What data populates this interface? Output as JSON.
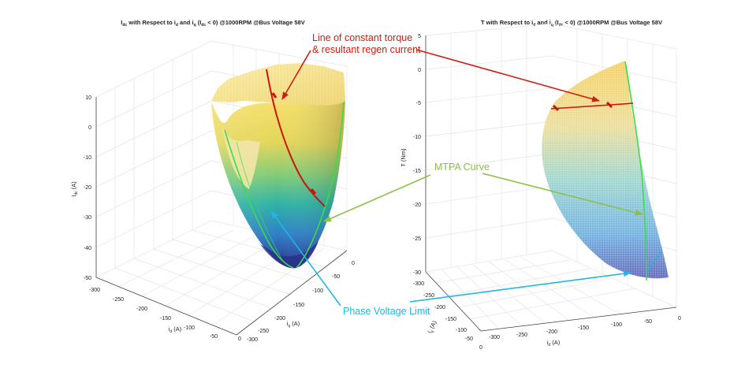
{
  "colors": {
    "annotation_red": "#cc1f12",
    "annotation_green": "#8dc04a",
    "annotation_cyan": "#22b6e2",
    "mtpa_line": "#3ddc4a",
    "torque_line": "#c8140c",
    "surface_top": "#f6e06a",
    "surface_mid": "#3cb5a0",
    "surface_bottom": "#2b2f8c"
  },
  "annotations": {
    "torque_line_line1": "Line of constant torque",
    "torque_line_line2": "& resultant regen current",
    "mtpa": "MTPA Curve",
    "phase_voltage": "Phase Voltage Limit"
  },
  "chart_data": [
    {
      "type": "surface3d",
      "title_parts": [
        "I",
        "dc",
        " with Respect to i",
        "d",
        " and i",
        "q",
        " (I",
        "dc",
        " < 0) @1000RPM @Bus Voltage 58V"
      ],
      "zlabel_main": "I",
      "zlabel_sub": "dc",
      "zlabel_unit": " (A)",
      "xlabel_main": "i",
      "xlabel_sub": "d",
      "xlabel_unit": " (A)",
      "ylabel_main": "i",
      "ylabel_sub": "q",
      "ylabel_unit": " (A)",
      "zlim": [
        -50,
        10
      ],
      "zticks": [
        "10",
        "0",
        "-10",
        "-20",
        "-30",
        "-40",
        "-50"
      ],
      "xlim": [
        -300,
        0
      ],
      "xticks": [
        "-300",
        "-250",
        "-200",
        "-150",
        "-100",
        "-50",
        "0"
      ],
      "ylim": [
        -300,
        0
      ],
      "yticks": [
        "0",
        "-50",
        "-100",
        "-150",
        "-200",
        "-250",
        "-300"
      ],
      "surface": {
        "id_at_min": -60,
        "iq_at_min": -90,
        "idc_min": -46,
        "idc_cap": 0
      },
      "series": [
        {
          "name": "Line of constant torque",
          "color": "#c8140c"
        },
        {
          "name": "MTPA Curve",
          "color": "#3ddc4a"
        },
        {
          "name": "Phase Voltage Limit",
          "color": "#3ddc4a"
        }
      ]
    },
    {
      "type": "surface3d",
      "title_parts": [
        "T with Respect to i",
        "d",
        " and i",
        "q",
        " (I",
        "dc",
        " < 0) @1000RPM @Bus Voltage 58V"
      ],
      "zlabel_main": "T (Nm)",
      "xlabel_main": "i",
      "xlabel_sub": "d",
      "xlabel_unit": " (A)",
      "ylabel_main": "i",
      "ylabel_sub": "q",
      "ylabel_unit": " (A)",
      "zlim": [
        -30,
        5
      ],
      "zticks": [
        "5",
        "0",
        "-5",
        "-10",
        "-15",
        "-20",
        "-25",
        "-30"
      ],
      "xlim": [
        -300,
        0
      ],
      "xticks": [
        "-300",
        "-250",
        "-200",
        "-150",
        "-100",
        "-50",
        "0"
      ],
      "ylim": [
        -300,
        0
      ],
      "yticks": [
        "-300",
        "-250",
        "-200",
        "-150",
        "-100",
        "-50",
        "0"
      ],
      "constant_torque_value": -5,
      "series": [
        {
          "name": "Line of constant torque",
          "color": "#c8140c"
        },
        {
          "name": "MTPA Curve",
          "color": "#3ddc4a"
        }
      ]
    }
  ]
}
